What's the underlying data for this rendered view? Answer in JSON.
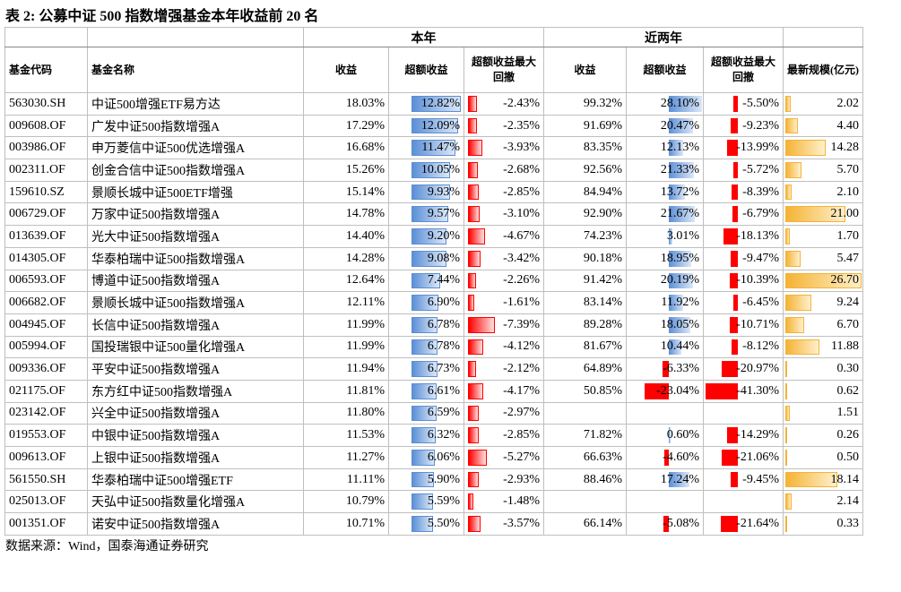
{
  "title": "表 2:  公募中证 500 指数增强基金本年收益前 20 名",
  "table": {
    "group_headers": [
      "本年",
      "近两年"
    ],
    "headers": [
      "基金代码",
      "基金名称",
      "收益",
      "超额收益",
      "超额收益最大回撤",
      "收益",
      "超额收益",
      "超额收益最大回撤",
      "最新规模(亿元)"
    ],
    "rows": [
      [
        "563030.SH",
        "中证500增强ETF易方达",
        "18.03%",
        "12.82%",
        "-2.43%",
        "99.32%",
        "28.10%",
        "-5.50%",
        "2.02"
      ],
      [
        "009608.OF",
        "广发中证500指数增强A",
        "17.29%",
        "12.09%",
        "-2.35%",
        "91.69%",
        "20.47%",
        "-9.23%",
        "4.40"
      ],
      [
        "003986.OF",
        "申万菱信中证500优选增强A",
        "16.68%",
        "11.47%",
        "-3.93%",
        "83.35%",
        "12.13%",
        "-13.99%",
        "14.28"
      ],
      [
        "002311.OF",
        "创金合信中证500指数增强A",
        "15.26%",
        "10.05%",
        "-2.68%",
        "92.56%",
        "21.33%",
        "-5.72%",
        "5.70"
      ],
      [
        "159610.SZ",
        "景顺长城中证500ETF增强",
        "15.14%",
        "9.93%",
        "-2.85%",
        "84.94%",
        "13.72%",
        "-8.39%",
        "2.10"
      ],
      [
        "006729.OF",
        "万家中证500指数增强A",
        "14.78%",
        "9.57%",
        "-3.10%",
        "92.90%",
        "21.67%",
        "-6.79%",
        "21.00"
      ],
      [
        "013639.OF",
        "光大中证500指数增强A",
        "14.40%",
        "9.20%",
        "-4.67%",
        "74.23%",
        "3.01%",
        "-18.13%",
        "1.70"
      ],
      [
        "014305.OF",
        "华泰柏瑞中证500指数增强A",
        "14.28%",
        "9.08%",
        "-3.42%",
        "90.18%",
        "18.95%",
        "-9.47%",
        "5.47"
      ],
      [
        "006593.OF",
        "博道中证500指数增强A",
        "12.64%",
        "7.44%",
        "-2.26%",
        "91.42%",
        "20.19%",
        "-10.39%",
        "26.70"
      ],
      [
        "006682.OF",
        "景顺长城中证500指数增强A",
        "12.11%",
        "6.90%",
        "-1.61%",
        "83.14%",
        "11.92%",
        "-6.45%",
        "9.24"
      ],
      [
        "004945.OF",
        "长信中证500指数增强A",
        "11.99%",
        "6.78%",
        "-7.39%",
        "89.28%",
        "18.05%",
        "-10.71%",
        "6.70"
      ],
      [
        "005994.OF",
        "国投瑞银中证500量化增强A",
        "11.99%",
        "6.78%",
        "-4.12%",
        "81.67%",
        "10.44%",
        "-8.12%",
        "11.88"
      ],
      [
        "009336.OF",
        "平安中证500指数增强A",
        "11.94%",
        "6.73%",
        "-2.12%",
        "64.89%",
        "-6.33%",
        "-20.97%",
        "0.30"
      ],
      [
        "021175.OF",
        "东方红中证500指数增强A",
        "11.81%",
        "6.61%",
        "-4.17%",
        "50.85%",
        "-23.04%",
        "-41.30%",
        "0.62"
      ],
      [
        "023142.OF",
        "兴全中证500指数增强A",
        "11.80%",
        "6.59%",
        "-2.97%",
        null,
        null,
        null,
        "1.51"
      ],
      [
        "019553.OF",
        "中银中证500指数增强A",
        "11.53%",
        "6.32%",
        "-2.85%",
        "71.82%",
        "0.60%",
        "-14.29%",
        "0.26"
      ],
      [
        "009613.OF",
        "上银中证500指数增强A",
        "11.27%",
        "6.06%",
        "-5.27%",
        "66.63%",
        "-4.60%",
        "-21.06%",
        "0.50"
      ],
      [
        "561550.SH",
        "华泰柏瑞中证500增强ETF",
        "11.11%",
        "5.90%",
        "-2.93%",
        "88.46%",
        "17.24%",
        "-9.45%",
        "18.14"
      ],
      [
        "025013.OF",
        "天弘中证500指数量化增强A",
        "10.79%",
        "5.59%",
        "-1.48%",
        null,
        null,
        null,
        "2.14"
      ],
      [
        "001351.OF",
        "诺安中证500指数增强A",
        "10.71%",
        "5.50%",
        "-3.57%",
        "66.14%",
        "-5.08%",
        "-21.64%",
        "0.33"
      ]
    ]
  },
  "source": "数据来源：Wind，国泰海通证券研究"
}
